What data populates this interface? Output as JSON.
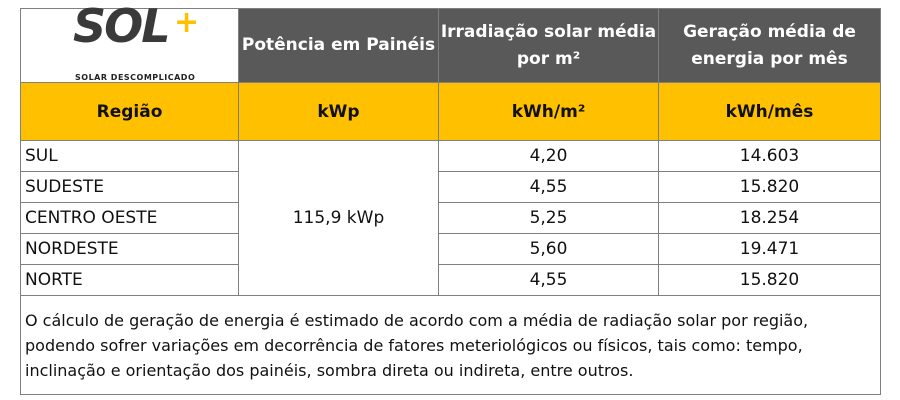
{
  "logo": {
    "brand": "SOL",
    "mark": "+",
    "tagline": "SOLAR DESCOMPLICADO"
  },
  "table": {
    "headers": [
      "Potência em Painéis",
      "Irradiação solar média por m²",
      "Geração média de energia por mês"
    ],
    "units": [
      "Região",
      "kWp",
      "kWh/m²",
      "kWh/mês"
    ],
    "power": "115,9 kWp",
    "rows": [
      [
        "SUL",
        "4,20",
        "14.603"
      ],
      [
        "SUDESTE",
        "4,55",
        "15.820"
      ],
      [
        "CENTRO OESTE",
        "5,25",
        "18.254"
      ],
      [
        "NORDESTE",
        "5,60",
        "19.471"
      ],
      [
        "NORTE",
        "4,55",
        "15.820"
      ]
    ],
    "note": "O cálculo de geração de energia é estimado de acordo com a média de radiação solar por região, podendo sofrer variações em decorrência de fatores meteriológicos ou físicos, tais como: tempo, inclinação e orientação dos painéis, sombra direta ou indireta, entre outros."
  }
}
